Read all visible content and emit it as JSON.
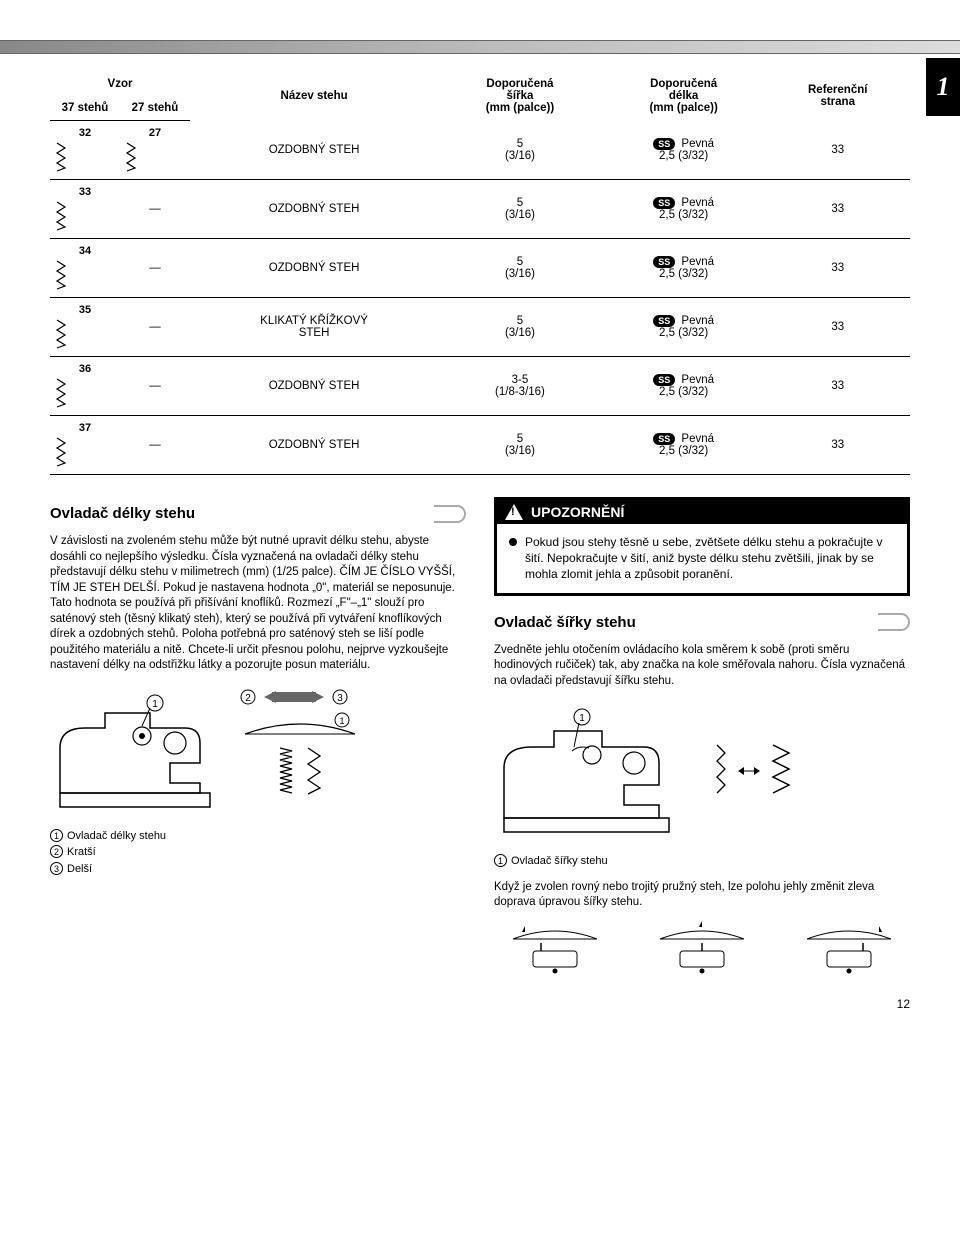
{
  "side_tab": "1",
  "page_number": "12",
  "table": {
    "headers": {
      "vzor": "Vzor",
      "sub37": "37 stehů",
      "sub27": "27 stehů",
      "nazev": "Název stehu",
      "sirka": "Doporučená\nšířka\n(mm (palce))",
      "delka": "Doporučená\ndélka\n(mm (palce))",
      "refstr": "Referenční\nstrana"
    },
    "rows": [
      {
        "n37": "32",
        "n27": "27",
        "nazev": "OZDOBNÝ STEH",
        "sirka": "5\n(3/16)",
        "ss": "SS",
        "pevna": "Pevná",
        "delka": "2,5 (3/32)",
        "ref": "33",
        "has27": true
      },
      {
        "n37": "33",
        "n27": "—",
        "nazev": "OZDOBNÝ STEH",
        "sirka": "5\n(3/16)",
        "ss": "SS",
        "pevna": "Pevná",
        "delka": "2,5 (3/32)",
        "ref": "33",
        "has27": false
      },
      {
        "n37": "34",
        "n27": "—",
        "nazev": "OZDOBNÝ STEH",
        "sirka": "5\n(3/16)",
        "ss": "SS",
        "pevna": "Pevná",
        "delka": "2,5 (3/32)",
        "ref": "33",
        "has27": false
      },
      {
        "n37": "35",
        "n27": "—",
        "nazev": "KLIKATÝ KŘÍŽKOVÝ\nSTEH",
        "sirka": "5\n(3/16)",
        "ss": "SS",
        "pevna": "Pevná",
        "delka": "2,5 (3/32)",
        "ref": "33",
        "has27": false
      },
      {
        "n37": "36",
        "n27": "—",
        "nazev": "OZDOBNÝ STEH",
        "sirka": "3-5\n(1/8-3/16)",
        "ss": "SS",
        "pevna": "Pevná",
        "delka": "2,5 (3/32)",
        "ref": "33",
        "has27": false
      },
      {
        "n37": "37",
        "n27": "—",
        "nazev": "OZDOBNÝ STEH",
        "sirka": "5\n(3/16)",
        "ss": "SS",
        "pevna": "Pevná",
        "delka": "2,5 (3/32)",
        "ref": "33",
        "has27": false
      }
    ]
  },
  "left": {
    "h": "Ovladač délky stehu",
    "p": "V závislosti na zvoleném stehu může být nutné upravit délku stehu, abyste dosáhli co nejlepšího výsledku. Čísla vyznačená na ovladači délky stehu představují délku stehu v milimetrech (mm) (1/25 palce). ČÍM JE ČÍSLO VYŠŠÍ, TÍM JE STEH DELŠÍ. Pokud je nastavena hodnota „0\", materiál se neposunuje. Tato hodnota se používá při přišívání knoflíků. Rozmezí „F\"–„1\" slouží pro saténový steh (těsný klikatý steh), který se používá při vytváření knoflíkových dírek a ozdobných stehů. Poloha potřebná pro saténový steh se liší podle použitého materiálu a nitě. Chcete-li určit přesnou polohu, nejprve vyzkoušejte nastavení délky na odstřižku látky a pozorujte posun materiálu.",
    "c1": "Ovladač délky stehu",
    "c2": "Kratší",
    "c3": "Delší"
  },
  "right": {
    "warn_h": "UPOZORNĚNÍ",
    "warn_p": "Pokud jsou stehy těsně u sebe, zvětšete délku stehu a pokračujte v šití. Nepokračujte v šití, aniž byste délku stehu zvětšili, jinak by se mohla zlomit jehla a způsobit poranění.",
    "h": "Ovladač šířky stehu",
    "p1": "Zvedněte jehlu otočením ovládacího kola směrem k sobě (proti směru hodinových ručiček) tak, aby značka na kole směřovala nahoru. Čísla vyznačená na ovladači představují šířku stehu.",
    "c1": "Ovladač šířky stehu",
    "p2": "Když je zvolen rovný nebo trojitý pružný steh, lze polohu jehly změnit zleva doprava úpravou šířky stehu."
  }
}
